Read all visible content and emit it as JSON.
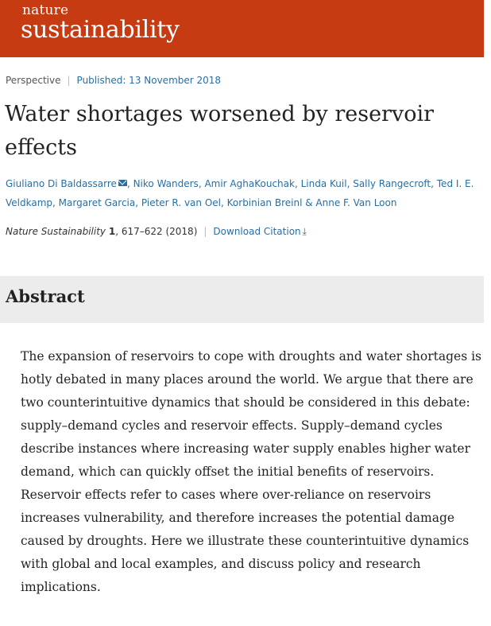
{
  "header": {
    "logo_small": "nature",
    "logo_big": "sustainability",
    "bg_color": "#c63b12"
  },
  "meta": {
    "article_type": "Perspective",
    "published": "Published: 13 November 2018"
  },
  "article": {
    "title": "Water shortages worsened by reservoir effects"
  },
  "authors": [
    "Giuliano Di Baldassarre",
    "Niko Wanders",
    "Amir AghaKouchak",
    "Linda Kuil",
    "Sally Rangecroft",
    "Ted I. E. Veldkamp",
    "Margaret Garcia",
    "Pieter R. van Oel",
    "Korbinian Breinl",
    "Anne F. Van Loon"
  ],
  "citation": {
    "journal": "Nature Sustainability",
    "volume": "1",
    "pages": ", 617–622 (2018)",
    "download_label": "Download Citation"
  },
  "abstract": {
    "heading": "Abstract",
    "text": "The expansion of reservoirs to cope with droughts and water shortages is hotly debated in many places around the world. We argue that there are two counterintuitive dynamics that should be considered in this debate: supply–demand cycles and reservoir effects. Supply–demand cycles describe instances where increasing water supply enables higher water demand, which can quickly offset the initial benefits of reservoirs. Reservoir effects refer to cases where over-reliance on reservoirs increases vulnerability, and therefore increases the potential damage caused by droughts. Here we illustrate these counterintuitive dynamics with global and local examples, and discuss policy and research implications."
  }
}
